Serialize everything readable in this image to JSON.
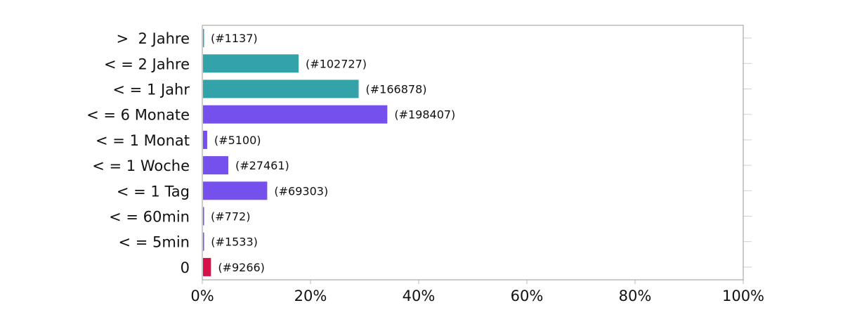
{
  "chart_data": {
    "type": "bar",
    "orientation": "horizontal",
    "categories": [
      ">  2 Jahre",
      "< = 2 Jahre",
      "< = 1 Jahr",
      "< = 6 Monate",
      "< = 1 Monat",
      "< = 1 Woche",
      "< = 1 Tag",
      "< = 60min",
      "< = 5min",
      "0"
    ],
    "values": [
      0.2,
      17.8,
      28.9,
      34.2,
      0.9,
      4.8,
      12.0,
      0.1,
      0.3,
      1.6
    ],
    "data_labels": [
      "(#1137)",
      "(#102727)",
      "(#166878)",
      "(#198407)",
      "(#5100)",
      "(#27461)",
      "(#69303)",
      "(#772)",
      "(#1533)",
      "(#9266)"
    ],
    "colors": [
      "#33a3a9",
      "#33a3a9",
      "#33a3a9",
      "#7550ed",
      "#7550ed",
      "#7550ed",
      "#7550ed",
      "#7550ed",
      "#7550ed",
      "#d81049"
    ],
    "xlim": [
      0,
      100
    ],
    "x_ticks": [
      "0%",
      "20%",
      "40%",
      "60%",
      "80%",
      "100%"
    ],
    "title": "",
    "xlabel": "",
    "ylabel": "",
    "grid": false,
    "legend": "none"
  }
}
